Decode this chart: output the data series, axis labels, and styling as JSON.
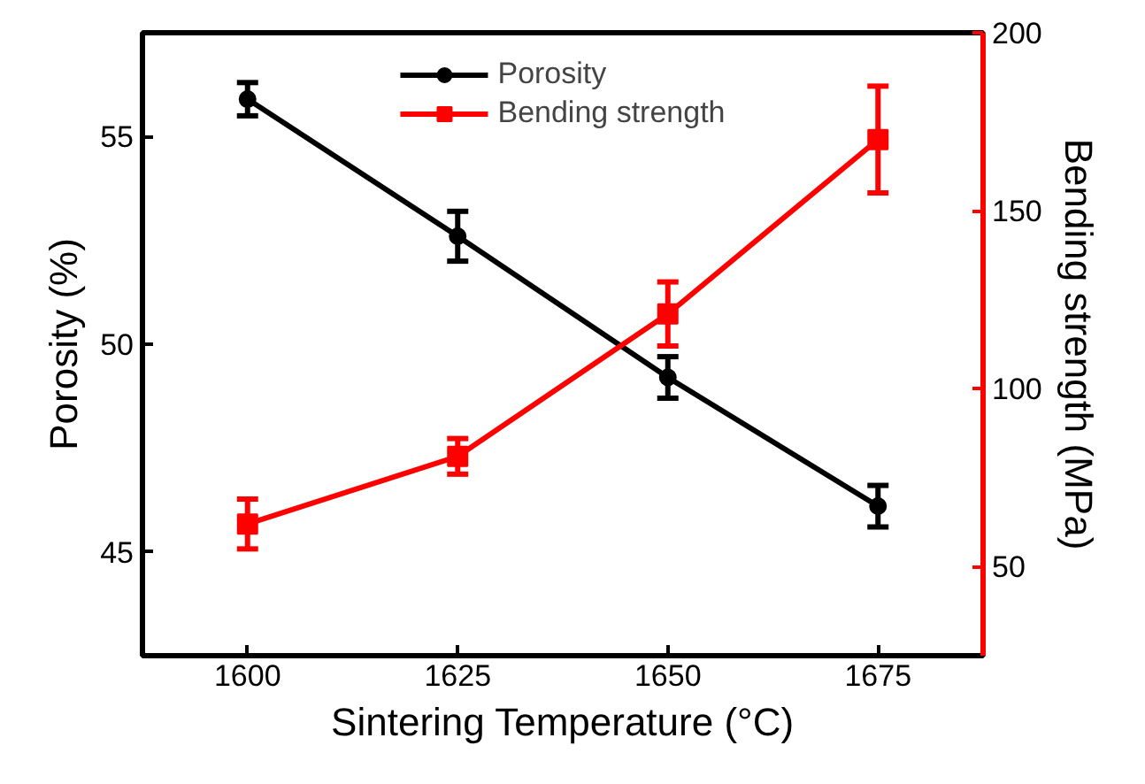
{
  "chart_data": {
    "type": "line",
    "xlabel": "Sintering Temperature (°C)",
    "ylabel": "Porosity (%)",
    "y2label": "Bending strength (MPa)",
    "x": [
      1600,
      1625,
      1650,
      1675
    ],
    "xlim": [
      1587.5,
      1687.5
    ],
    "xticks": [
      1600,
      1625,
      1650,
      1675
    ],
    "ylim": [
      42.5,
      57.5
    ],
    "yticks": [
      45,
      50,
      55
    ],
    "y2lim": [
      25,
      200
    ],
    "y2ticks": [
      50,
      100,
      150,
      200
    ],
    "line_style": "solid",
    "grid": false,
    "legend": "top",
    "series": [
      {
        "name": "Porosity",
        "color": "#000000",
        "marker": "circle",
        "values": [
          55.9,
          52.6,
          49.2,
          46.1
        ],
        "errors": [
          0.4,
          0.6,
          0.5,
          0.5
        ]
      },
      {
        "name": "Bending strength",
        "color": "#ff0000",
        "marker": "square",
        "axis": "y2",
        "values": [
          62,
          81,
          121,
          170
        ],
        "errors": [
          7,
          5,
          9,
          15
        ]
      }
    ]
  }
}
